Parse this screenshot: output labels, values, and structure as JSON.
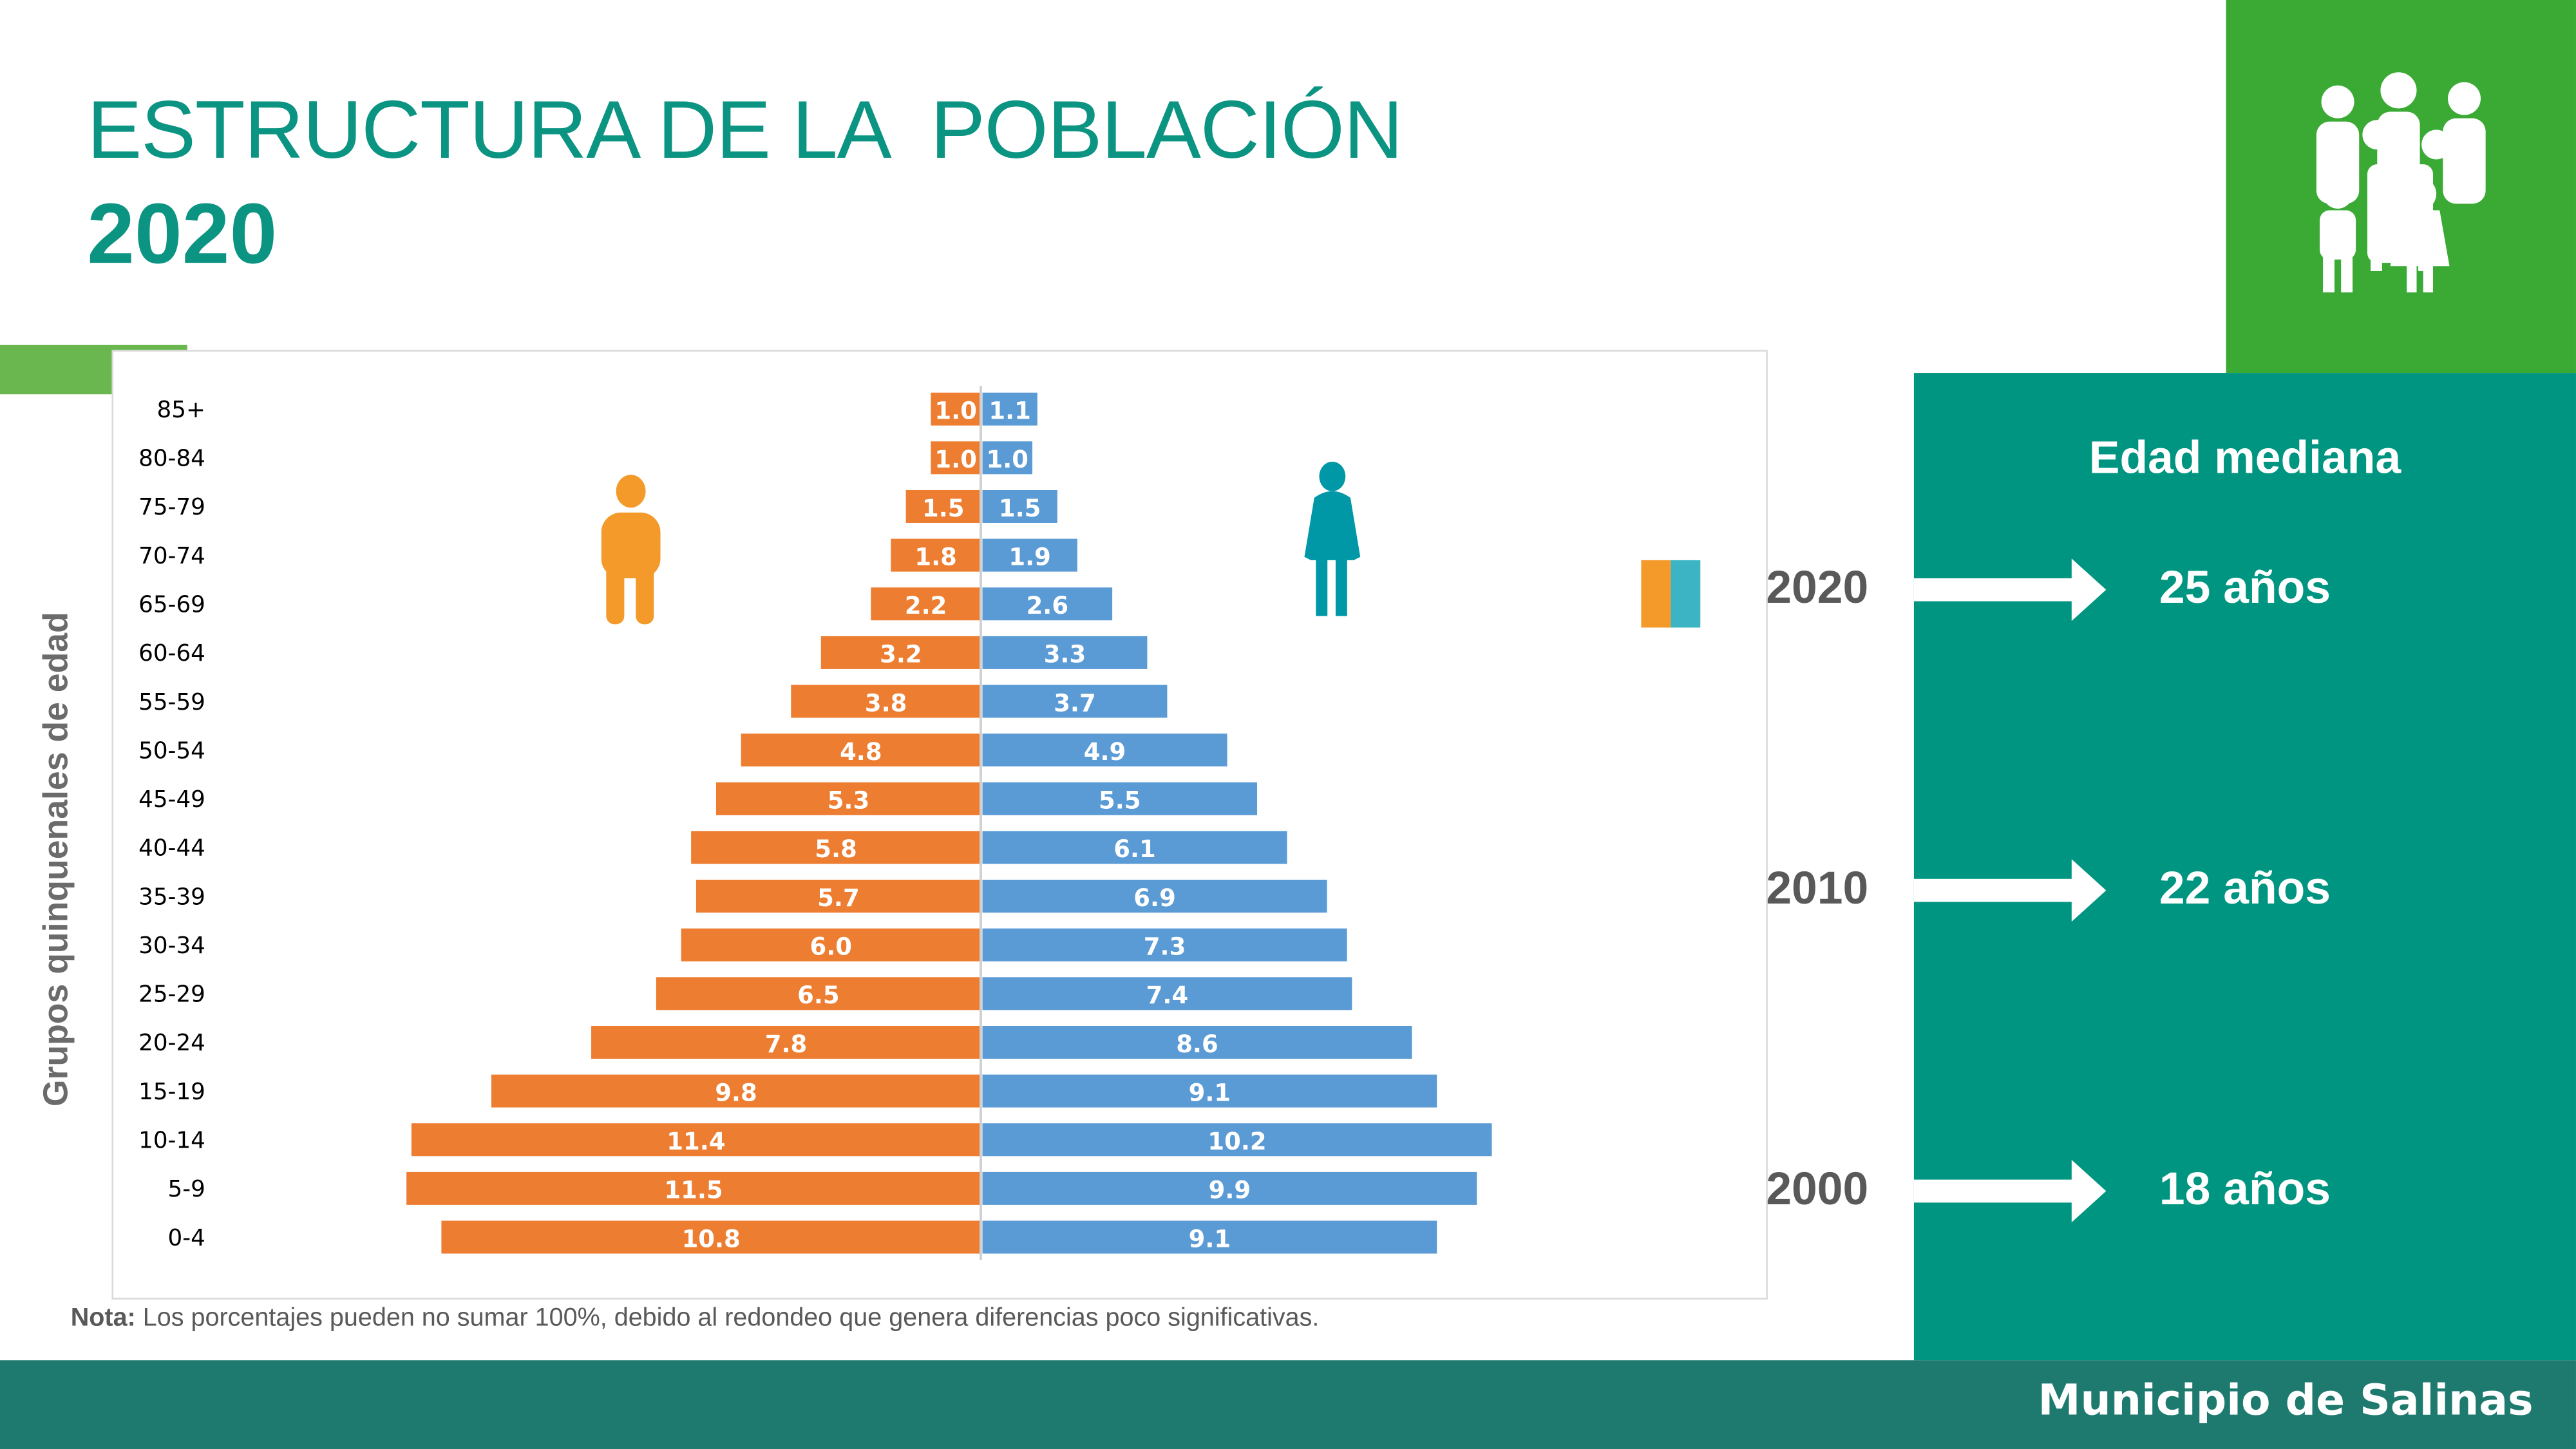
{
  "title": {
    "line1": "ESTRUCTURA DE LA  POBLACIÓN",
    "line2": "2020"
  },
  "footer": "Municipio de Salinas",
  "note": {
    "bold": "Nota:",
    "text": " Los porcentajes pueden no sumar 100%, debido al redondeo que genera diferencias poco significativas."
  },
  "median_age": {
    "heading": "Edad mediana",
    "rows": [
      {
        "year": "2020",
        "age": "25 años"
      },
      {
        "year": "2010",
        "age": "22 años"
      },
      {
        "year": "2000",
        "age": "18 años"
      }
    ]
  },
  "icons": {
    "header": "family-group-icon",
    "male": "man-icon",
    "female": "woman-icon"
  },
  "colors": {
    "male": "#ed7d31",
    "female": "#5b9bd5",
    "accent_teal": "#009580",
    "accent_green": "#3aaa35",
    "male_icon": "#f39a2b",
    "female_icon": "#0097a7"
  },
  "chart_data": {
    "type": "bar",
    "orientation": "horizontal-population-pyramid",
    "ylabel": "Grupos quinquenales de edad",
    "categories": [
      "85+",
      "80-84",
      "75-79",
      "70-74",
      "65-69",
      "60-64",
      "55-59",
      "50-54",
      "45-49",
      "40-44",
      "35-39",
      "30-34",
      "25-29",
      "20-24",
      "15-19",
      "10-14",
      "5-9",
      "0-4"
    ],
    "series": [
      {
        "key": "male",
        "values": [
          1.0,
          1.0,
          1.5,
          1.8,
          2.2,
          3.2,
          3.8,
          4.8,
          5.3,
          5.8,
          5.7,
          6.0,
          6.5,
          7.8,
          9.8,
          11.4,
          11.5,
          10.8
        ]
      },
      {
        "key": "female",
        "values": [
          1.1,
          1.0,
          1.5,
          1.9,
          2.6,
          3.3,
          3.7,
          4.9,
          5.5,
          6.1,
          6.9,
          7.3,
          7.4,
          8.6,
          9.1,
          10.2,
          9.9,
          9.1
        ]
      }
    ],
    "data_labels": true,
    "grid": false
  }
}
